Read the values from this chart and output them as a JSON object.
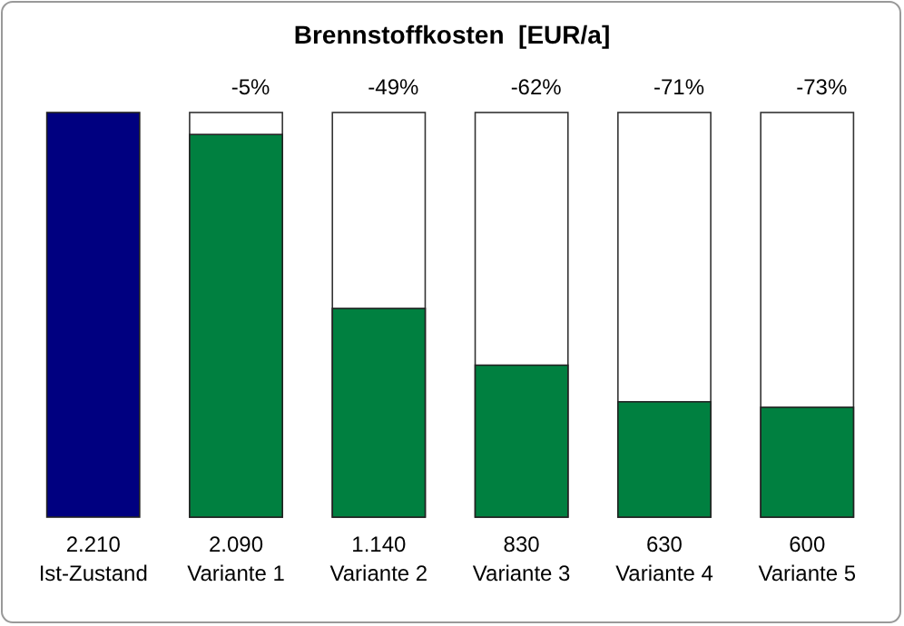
{
  "chart_data": {
    "type": "bar",
    "title": "Brennstoffkosten  [EUR/a]",
    "categories": [
      "Ist-Zustand",
      "Variante 1",
      "Variante 2",
      "Variante 3",
      "Variante 4",
      "Variante 5"
    ],
    "values": [
      2210,
      2090,
      1140,
      830,
      630,
      600
    ],
    "colors": [
      "#000080",
      "#008040",
      "#008040",
      "#008040",
      "#008040",
      "#008040"
    ],
    "value_labels": [
      "2.210",
      "2.090",
      "1.140",
      "830",
      "630",
      "600"
    ],
    "annotations": [
      "-5%",
      "-49%",
      "-62%",
      "-71%",
      "-73%"
    ]
  }
}
